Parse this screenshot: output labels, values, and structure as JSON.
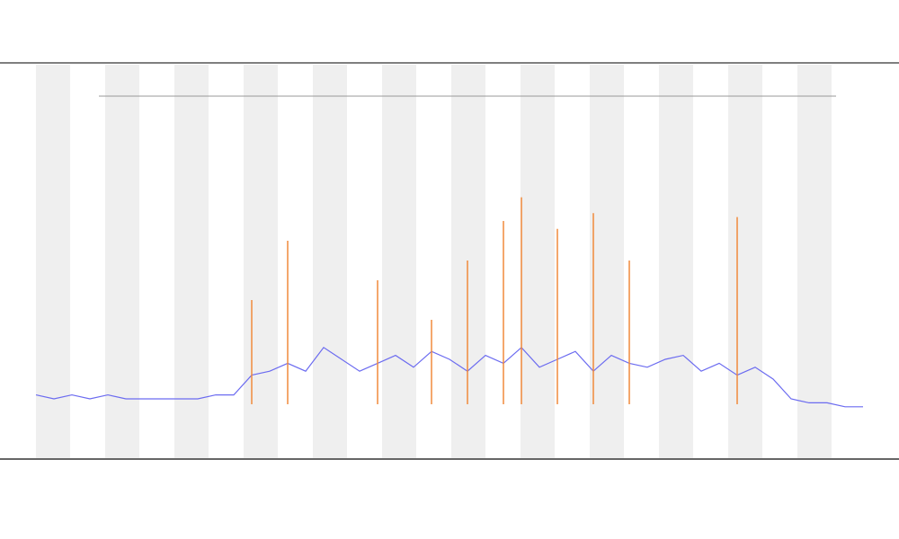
{
  "chart_data": {
    "type": "line",
    "x": [
      0,
      1,
      2,
      3,
      4,
      5,
      6,
      7,
      8,
      9,
      10,
      11,
      12,
      13,
      14,
      15,
      16,
      17,
      18,
      19,
      20,
      21,
      22,
      23,
      24,
      25,
      26,
      27,
      28,
      29,
      30,
      31,
      32,
      33,
      34,
      35,
      36,
      37,
      38,
      39,
      40,
      41,
      42,
      43,
      44,
      45,
      46
    ],
    "xlim": [
      0,
      46
    ],
    "ylim": [
      0,
      100
    ],
    "series": [
      {
        "color": "#6b6bf0",
        "values": [
          16,
          15,
          16,
          15,
          16,
          15,
          15,
          15,
          15,
          15,
          16,
          16,
          21,
          22,
          24,
          22,
          28,
          25,
          22,
          24,
          26,
          23,
          27,
          25,
          22,
          26,
          24,
          28,
          23,
          25,
          27,
          22,
          26,
          24,
          23,
          25,
          26,
          22,
          24,
          21,
          23,
          20,
          15,
          14,
          14,
          13,
          13
        ]
      },
      {
        "color": "#f08a3c",
        "values": [
          null,
          null,
          null,
          null,
          null,
          null,
          null,
          null,
          null,
          null,
          null,
          null,
          40,
          null,
          55,
          null,
          null,
          null,
          null,
          45,
          null,
          null,
          35,
          null,
          50,
          null,
          60,
          66,
          null,
          58,
          null,
          62,
          null,
          50,
          null,
          null,
          null,
          null,
          null,
          61,
          null,
          null,
          null,
          null,
          null,
          null,
          null
        ]
      }
    ]
  }
}
